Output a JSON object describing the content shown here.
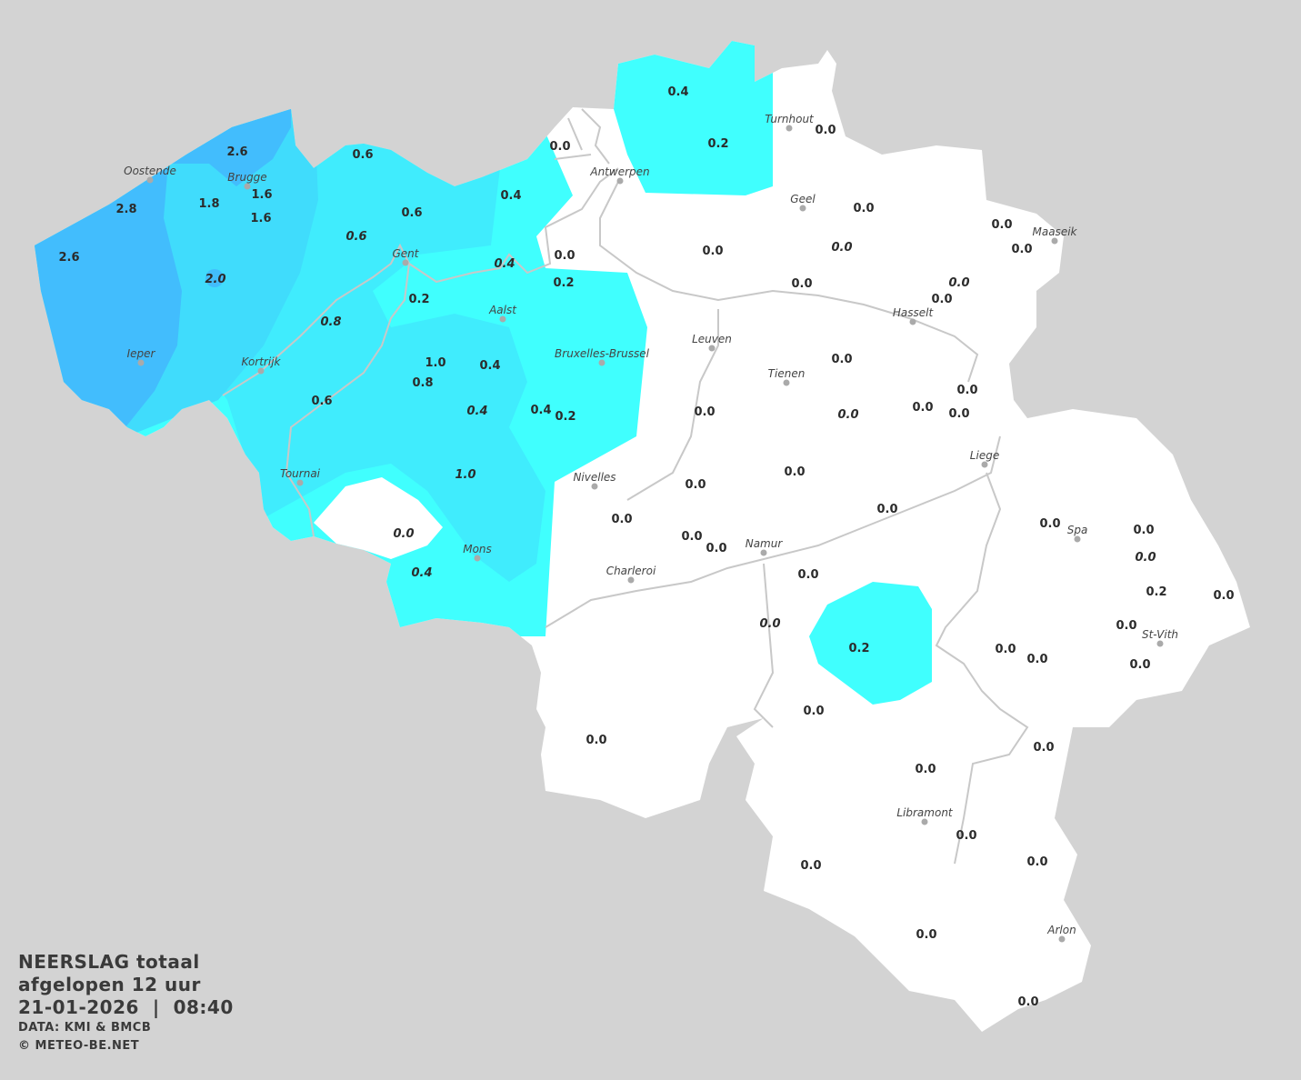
{
  "legend": {
    "title": "NEERSLAG totaal",
    "period": "afgelopen 12 uur",
    "datetime": "21-01-2026  |  08:40",
    "source": "DATA: KMI & BMCB",
    "copyright": "© METEO-BE.NET"
  },
  "colors": {
    "background": "#d3d3d3",
    "land": "#ffffff",
    "rain_0_2": "#40fffe",
    "rain_0_6": "#40ecfd",
    "rain_1_5": "#40dcfc",
    "rain_2_5": "#42bdfd",
    "rivers": "#c8c8c8"
  },
  "cities": [
    "Oostende",
    "Brugge",
    "Gent",
    "Antwerpen",
    "Turnhout",
    "Geel",
    "Maaseik",
    "Hasselt",
    "Aalst",
    "Leuven",
    "Tienen",
    "Ieper",
    "Kortrijk",
    "Bruxelles-Brussel",
    "Tournai",
    "Nivelles",
    "Liege",
    "Mons",
    "Namur",
    "Charleroi",
    "Spa",
    "St-Vith",
    "Libramont",
    "Arlon"
  ],
  "stations": [
    "2.6",
    "2.8",
    "2.6",
    "1.8",
    "1.6",
    "1.6",
    "2.0",
    "0.6",
    "0.6",
    "0.6",
    "0.4",
    "0.0",
    "0.4",
    "0.2",
    "0.2",
    "0.0",
    "0.4",
    "0.2",
    "0.8",
    "1.0",
    "0.4",
    "0.8",
    "0.6",
    "0.4",
    "0.4",
    "0.2",
    "1.0",
    "0.0",
    "0.4",
    "0.2",
    "0.0",
    "0.0",
    "0.0",
    "0.0",
    "0.0",
    "0.0",
    "0.0",
    "0.0",
    "0.0",
    "0.0",
    "0.0",
    "0.0",
    "0.0",
    "0.0",
    "0.0",
    "0.0",
    "0.0",
    "0.0",
    "0.0",
    "0.0",
    "0.0",
    "0.0",
    "0.0",
    "0.0",
    "0.0",
    "0.0",
    "0.2",
    "0.0",
    "0.0",
    "0.0",
    "0.0",
    "0.0",
    "0.0",
    "0.0",
    "0.0",
    "0.0",
    "0.0",
    "0.0",
    "0.0",
    "0.0",
    "0.0",
    "0.0",
    "0.0",
    "0.0",
    "0.0",
    "0.0"
  ]
}
